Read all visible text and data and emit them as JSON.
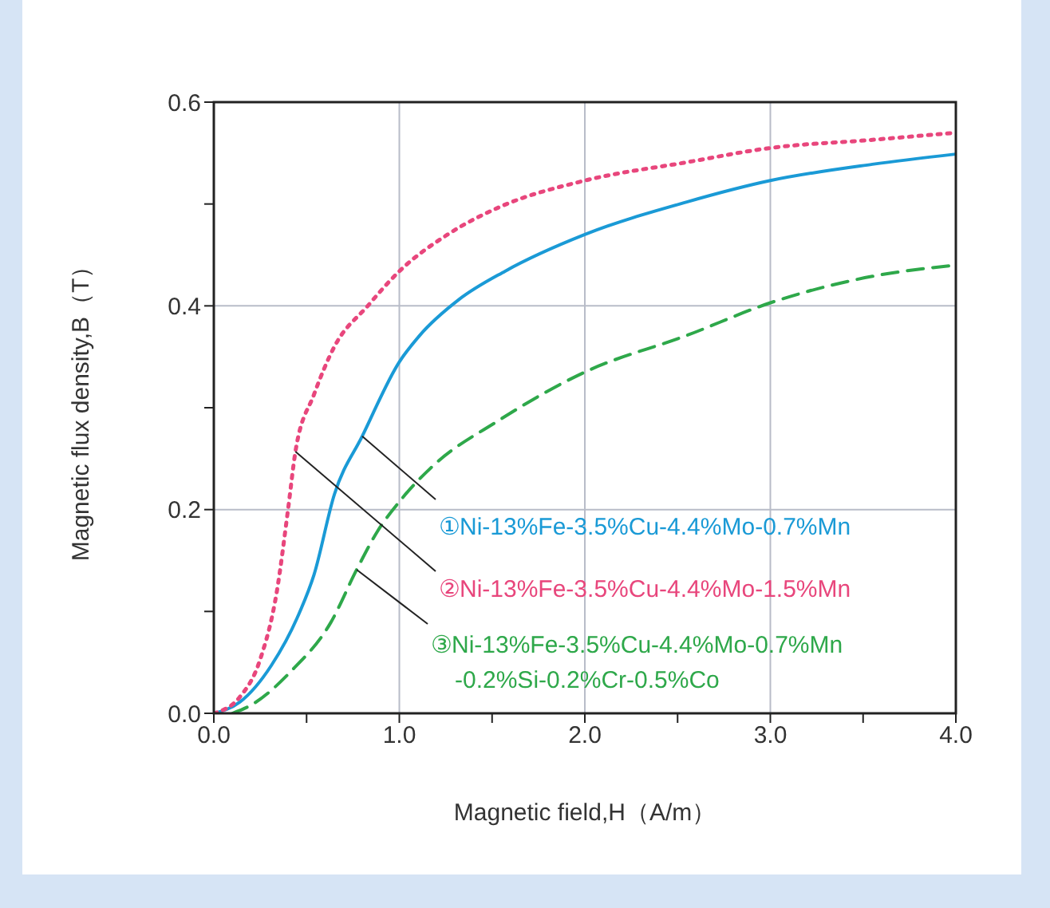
{
  "chart_data": {
    "type": "line",
    "xlabel": "Magnetic field,H（A/m）",
    "ylabel": "Magnetic flux density,B（T）",
    "xlim": [
      0,
      4
    ],
    "ylim": [
      0,
      0.6
    ],
    "xticks": [
      {
        "value": 0,
        "label": "0.0"
      },
      {
        "value": 0.5,
        "label": null
      },
      {
        "value": 1,
        "label": "1.0"
      },
      {
        "value": 1.5,
        "label": null
      },
      {
        "value": 2,
        "label": "2.0"
      },
      {
        "value": 2.5,
        "label": null
      },
      {
        "value": 3,
        "label": "3.0"
      },
      {
        "value": 3.5,
        "label": null
      },
      {
        "value": 4,
        "label": "4.0"
      }
    ],
    "yticks": [
      {
        "value": 0,
        "label": "0.0"
      },
      {
        "value": 0.1,
        "label": null
      },
      {
        "value": 0.2,
        "label": "0.2"
      },
      {
        "value": 0.3,
        "label": null
      },
      {
        "value": 0.4,
        "label": "0.4"
      },
      {
        "value": 0.5,
        "label": null
      },
      {
        "value": 0.6,
        "label": "0.6"
      }
    ],
    "grid": true,
    "legend": false,
    "marker": "none",
    "series": [
      {
        "name": "①Ni-13%Fe-3.5%Cu-4.4%Mo-0.7%Mn",
        "color": "#1a9ad6",
        "line_style": "solid",
        "x": [
          0,
          0.14,
          0.31,
          0.45,
          0.54,
          0.65,
          0.8,
          1.0,
          1.11,
          1.32,
          1.57,
          2.0,
          2.55,
          3.0,
          3.55,
          4.0
        ],
        "values": [
          0,
          0.011,
          0.047,
          0.094,
          0.136,
          0.215,
          0.272,
          0.345,
          0.371,
          0.406,
          0.434,
          0.47,
          0.502,
          0.523,
          0.539,
          0.549
        ]
      },
      {
        "name": "②Ni-13%Fe-3.5%Cu-4.4%Mo-1.5%Mn",
        "color": "#e8467c",
        "line_style": "dotted",
        "x": [
          0,
          0.14,
          0.25,
          0.34,
          0.4,
          0.44,
          0.54,
          0.65,
          0.83,
          1.0,
          1.26,
          1.54,
          2.0,
          2.55,
          3.0,
          3.55,
          4.0
        ],
        "values": [
          0,
          0.016,
          0.053,
          0.12,
          0.2,
          0.257,
          0.313,
          0.36,
          0.4,
          0.434,
          0.47,
          0.497,
          0.523,
          0.541,
          0.555,
          0.563,
          0.57
        ]
      },
      {
        "name": "③Ni-13%Fe-3.5%Cu-4.4%Mo-0.7%Mn\n-0.2%Si-0.2%Cr-0.5%Co",
        "color": "#2ea84a",
        "line_style": "dashed",
        "x": [
          0.1,
          0.2,
          0.42,
          0.63,
          0.77,
          0.88,
          1.01,
          1.17,
          1.54,
          2.0,
          2.55,
          3.0,
          3.55,
          4.0
        ],
        "values": [
          0,
          0.008,
          0.042,
          0.089,
          0.141,
          0.178,
          0.21,
          0.241,
          0.288,
          0.335,
          0.371,
          0.403,
          0.429,
          0.44
        ]
      }
    ]
  }
}
